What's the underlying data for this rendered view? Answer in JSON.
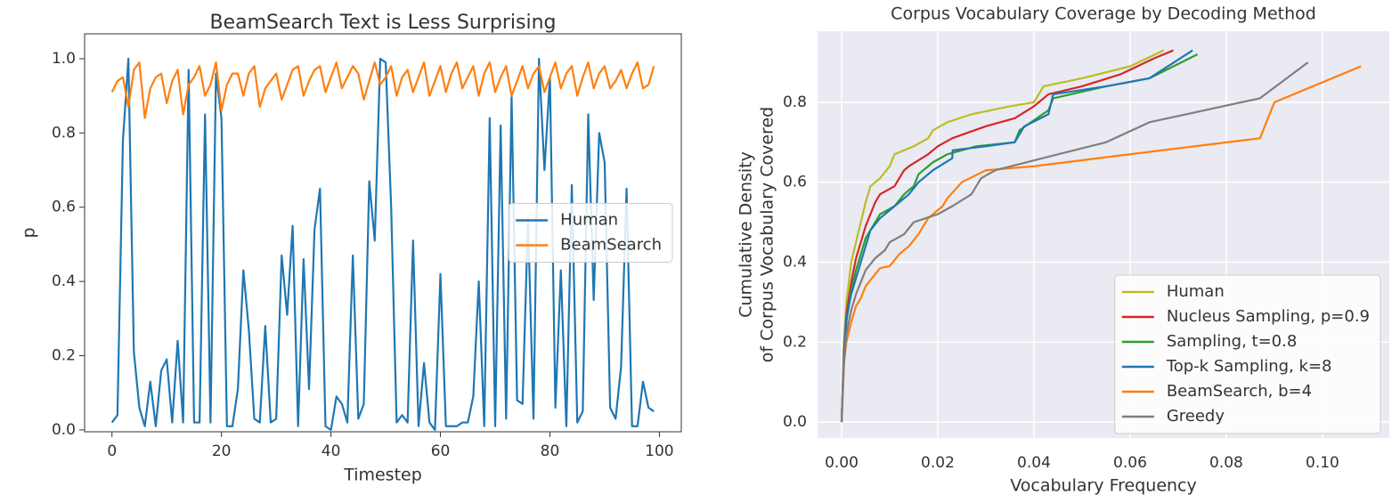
{
  "chart_data": [
    {
      "type": "line",
      "title": "BeamSearch Text is Less Surprising",
      "xlabel": "Timestep",
      "ylabel": "p",
      "x": [
        0,
        1,
        2,
        3,
        4,
        5,
        6,
        7,
        8,
        9,
        10,
        11,
        12,
        13,
        14,
        15,
        16,
        17,
        18,
        19,
        20,
        21,
        22,
        23,
        24,
        25,
        26,
        27,
        28,
        29,
        30,
        31,
        32,
        33,
        34,
        35,
        36,
        37,
        38,
        39,
        40,
        41,
        42,
        43,
        44,
        45,
        46,
        47,
        48,
        49,
        50,
        51,
        52,
        53,
        54,
        55,
        56,
        57,
        58,
        59,
        60,
        61,
        62,
        63,
        64,
        65,
        66,
        67,
        68,
        69,
        70,
        71,
        72,
        73,
        74,
        75,
        76,
        77,
        78,
        79,
        80,
        81,
        82,
        83,
        84,
        85,
        86,
        87,
        88,
        89,
        90,
        91,
        92,
        93,
        94,
        95,
        96,
        97,
        98,
        99
      ],
      "series": [
        {
          "name": "Human",
          "color": "#1f77b4",
          "values": [
            0.02,
            0.04,
            0.78,
            1.0,
            0.21,
            0.06,
            0.01,
            0.13,
            0.01,
            0.16,
            0.19,
            0.02,
            0.24,
            0.02,
            0.97,
            0.02,
            0.02,
            0.85,
            0.02,
            0.96,
            0.84,
            0.01,
            0.01,
            0.11,
            0.43,
            0.27,
            0.03,
            0.02,
            0.28,
            0.02,
            0.03,
            0.47,
            0.31,
            0.55,
            0.01,
            0.46,
            0.11,
            0.54,
            0.65,
            0.01,
            0.0,
            0.09,
            0.07,
            0.02,
            0.47,
            0.03,
            0.07,
            0.67,
            0.51,
            1.0,
            0.99,
            0.6,
            0.02,
            0.04,
            0.02,
            0.51,
            0.01,
            0.18,
            0.02,
            0.0,
            0.42,
            0.01,
            0.01,
            0.01,
            0.02,
            0.02,
            0.09,
            0.4,
            0.01,
            0.84,
            0.01,
            0.82,
            0.03,
            0.9,
            0.08,
            0.07,
            0.57,
            0.03,
            1.0,
            0.7,
            0.95,
            0.06,
            0.43,
            0.01,
            0.66,
            0.02,
            0.05,
            0.85,
            0.35,
            0.8,
            0.72,
            0.06,
            0.03,
            0.17,
            0.65,
            0.01,
            0.01,
            0.13,
            0.06,
            0.05
          ]
        },
        {
          "name": "BeamSearch",
          "color": "#ff7f0e",
          "values": [
            0.91,
            0.94,
            0.95,
            0.87,
            0.97,
            0.99,
            0.84,
            0.92,
            0.95,
            0.96,
            0.88,
            0.94,
            0.97,
            0.85,
            0.93,
            0.95,
            0.98,
            0.9,
            0.93,
            0.99,
            0.86,
            0.93,
            0.96,
            0.96,
            0.9,
            0.96,
            0.98,
            0.87,
            0.92,
            0.94,
            0.96,
            0.89,
            0.93,
            0.97,
            0.98,
            0.9,
            0.94,
            0.97,
            0.98,
            0.91,
            0.95,
            0.99,
            0.92,
            0.95,
            0.98,
            0.96,
            0.89,
            0.94,
            0.99,
            0.93,
            0.95,
            0.98,
            0.9,
            0.95,
            0.97,
            0.91,
            0.95,
            0.99,
            0.9,
            0.94,
            0.98,
            0.91,
            0.96,
            0.99,
            0.92,
            0.95,
            0.98,
            0.9,
            0.96,
            0.99,
            0.91,
            0.95,
            0.98,
            0.9,
            0.94,
            0.98,
            0.92,
            0.96,
            0.98,
            0.91,
            0.95,
            0.99,
            0.92,
            0.96,
            0.98,
            0.9,
            0.95,
            0.99,
            0.92,
            0.96,
            0.98,
            0.92,
            0.94,
            0.97,
            0.92,
            0.96,
            0.99,
            0.92,
            0.93,
            0.98
          ]
        }
      ],
      "xlim": [
        -5,
        104
      ],
      "ylim": [
        -0.005,
        1.067
      ],
      "xticks": [
        0,
        20,
        40,
        60,
        80,
        100
      ],
      "yticks": [
        {
          "value": 0,
          "label": "0.0"
        },
        {
          "value": 0.2,
          "label": "0.2"
        },
        {
          "value": 0.4,
          "label": "0.4"
        },
        {
          "value": 0.6,
          "label": "0.6"
        },
        {
          "value": 0.8,
          "label": "0.8"
        },
        {
          "value": 1,
          "label": "1.0"
        }
      ],
      "grid": false,
      "background": "#ffffff",
      "legend": "center right"
    },
    {
      "type": "line",
      "title": "Corpus Vocabulary Coverage by Decoding Method",
      "xlabel": "Vocabulary Frequency",
      "ylabel": [
        "Cumulative Density",
        "of Corpus Vocabulary Covered"
      ],
      "series": [
        {
          "name": "Human",
          "color": "#bcbd22",
          "x": [
            0,
            0.0005,
            0.001,
            0.0015,
            0.002,
            0.003,
            0.004,
            0.005,
            0.006,
            0.008,
            0.01,
            0.011,
            0.015,
            0.018,
            0.019,
            0.022,
            0.027,
            0.035,
            0.04,
            0.042,
            0.05,
            0.06,
            0.067
          ],
          "values": [
            0,
            0.2,
            0.3,
            0.35,
            0.4,
            0.45,
            0.5,
            0.55,
            0.59,
            0.61,
            0.64,
            0.67,
            0.69,
            0.71,
            0.73,
            0.75,
            0.77,
            0.79,
            0.8,
            0.84,
            0.86,
            0.89,
            0.93
          ]
        },
        {
          "name": "Nucleus Sampling, p=0.9",
          "color": "#d62728",
          "x": [
            0,
            0.0005,
            0.001,
            0.002,
            0.003,
            0.004,
            0.005,
            0.006,
            0.007,
            0.008,
            0.011,
            0.013,
            0.014,
            0.018,
            0.02,
            0.023,
            0.03,
            0.036,
            0.04,
            0.043,
            0.05,
            0.058,
            0.065,
            0.069
          ],
          "values": [
            0,
            0.18,
            0.27,
            0.35,
            0.41,
            0.45,
            0.49,
            0.52,
            0.55,
            0.57,
            0.59,
            0.63,
            0.64,
            0.67,
            0.69,
            0.71,
            0.74,
            0.76,
            0.79,
            0.82,
            0.84,
            0.87,
            0.91,
            0.93
          ]
        },
        {
          "name": "Sampling, t=0.8",
          "color": "#2ca02c",
          "x": [
            0,
            0.0005,
            0.001,
            0.002,
            0.003,
            0.004,
            0.005,
            0.007,
            0.008,
            0.011,
            0.013,
            0.015,
            0.016,
            0.019,
            0.022,
            0.028,
            0.036,
            0.037,
            0.043,
            0.044,
            0.055,
            0.064,
            0.074
          ],
          "values": [
            0,
            0.16,
            0.25,
            0.33,
            0.38,
            0.42,
            0.46,
            0.5,
            0.52,
            0.54,
            0.57,
            0.59,
            0.62,
            0.65,
            0.67,
            0.69,
            0.7,
            0.73,
            0.78,
            0.81,
            0.84,
            0.86,
            0.92
          ]
        },
        {
          "name": "Top-k Sampling, k=8",
          "color": "#1f77b4",
          "x": [
            0,
            0.0005,
            0.001,
            0.002,
            0.003,
            0.004,
            0.005,
            0.006,
            0.008,
            0.01,
            0.012,
            0.014,
            0.016,
            0.019,
            0.023,
            0.0231,
            0.03,
            0.036,
            0.038,
            0.043,
            0.044,
            0.055,
            0.064,
            0.073
          ],
          "values": [
            0,
            0.17,
            0.26,
            0.32,
            0.36,
            0.4,
            0.44,
            0.48,
            0.51,
            0.53,
            0.55,
            0.57,
            0.6,
            0.63,
            0.66,
            0.68,
            0.69,
            0.7,
            0.74,
            0.77,
            0.82,
            0.84,
            0.86,
            0.93
          ]
        },
        {
          "name": "BeamSearch, b=4",
          "color": "#ff7f0e",
          "x": [
            0,
            0.0005,
            0.001,
            0.002,
            0.003,
            0.004,
            0.005,
            0.007,
            0.008,
            0.01,
            0.012,
            0.014,
            0.016,
            0.018,
            0.021,
            0.022,
            0.025,
            0.03,
            0.04,
            0.06,
            0.087,
            0.09,
            0.108
          ],
          "values": [
            0,
            0.15,
            0.2,
            0.25,
            0.29,
            0.31,
            0.34,
            0.37,
            0.385,
            0.39,
            0.42,
            0.44,
            0.47,
            0.51,
            0.54,
            0.56,
            0.6,
            0.63,
            0.64,
            0.67,
            0.71,
            0.8,
            0.89
          ]
        },
        {
          "name": "Greedy",
          "color": "#7f7f7f",
          "x": [
            0,
            0.0005,
            0.001,
            0.002,
            0.003,
            0.004,
            0.005,
            0.007,
            0.009,
            0.01,
            0.013,
            0.015,
            0.02,
            0.023,
            0.027,
            0.029,
            0.032,
            0.045,
            0.055,
            0.064,
            0.087,
            0.097
          ],
          "values": [
            0,
            0.15,
            0.22,
            0.28,
            0.32,
            0.35,
            0.38,
            0.41,
            0.43,
            0.45,
            0.47,
            0.5,
            0.52,
            0.54,
            0.57,
            0.61,
            0.63,
            0.67,
            0.7,
            0.75,
            0.81,
            0.9
          ]
        }
      ],
      "xlim": [
        -0.005,
        0.1139
      ],
      "ylim": [
        -0.04,
        0.978
      ],
      "xticks": [
        {
          "value": 0,
          "label": "0.00"
        },
        {
          "value": 0.02,
          "label": "0.02"
        },
        {
          "value": 0.04,
          "label": "0.04"
        },
        {
          "value": 0.06,
          "label": "0.06"
        },
        {
          "value": 0.08,
          "label": "0.08"
        },
        {
          "value": 0.1,
          "label": "0.10"
        }
      ],
      "yticks": [
        {
          "value": 0,
          "label": "0.0"
        },
        {
          "value": 0.2,
          "label": "0.2"
        },
        {
          "value": 0.4,
          "label": "0.4"
        },
        {
          "value": 0.6,
          "label": "0.6"
        },
        {
          "value": 0.8,
          "label": "0.8"
        }
      ],
      "grid": true,
      "background": "#eaeaf2",
      "legend": "lower right"
    }
  ]
}
